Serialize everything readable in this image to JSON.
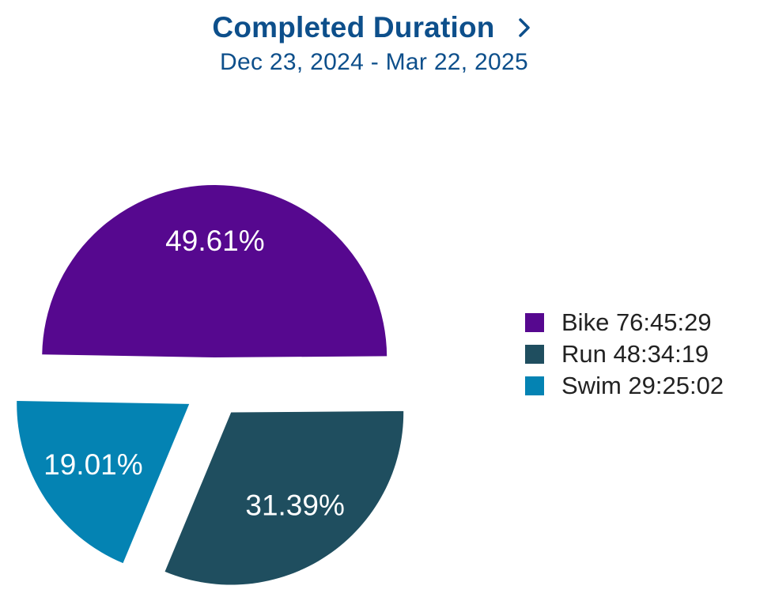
{
  "header": {
    "title": "Completed Duration",
    "subtitle": "Dec 23, 2024 - Mar 22, 2025"
  },
  "chart_data": {
    "type": "pie",
    "title": "Completed Duration",
    "subtitle": "Dec 23, 2024 - Mar 22, 2025",
    "legend_position": "right",
    "exploded": true,
    "slices": [
      {
        "name": "Bike",
        "value_label": "76:45:29",
        "percent": 49.61,
        "percent_label": "49.61%",
        "color": "#56088f"
      },
      {
        "name": "Run",
        "value_label": "48:34:19",
        "percent": 31.39,
        "percent_label": "31.39%",
        "color": "#1f4e5f"
      },
      {
        "name": "Swim",
        "value_label": "29:25:02",
        "percent": 19.01,
        "percent_label": "19.01%",
        "color": "#0483b3"
      }
    ]
  },
  "icons": {
    "chevron": "chevron-right-icon"
  }
}
